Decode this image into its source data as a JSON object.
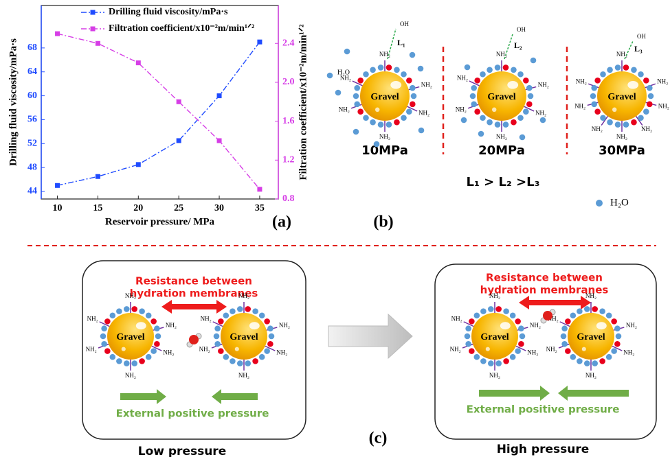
{
  "chart_data": {
    "type": "line",
    "panel_label": "(a)",
    "xlabel": "Reservoir pressure/ MPa",
    "ylabel": "Drilling fluid viscosity/mPa·s",
    "y2label": "Filtration coefficient/x10⁻²m/min¹ᐟ²",
    "x": [
      10,
      15,
      20,
      25,
      30,
      35
    ],
    "xlim": [
      8,
      37.3
    ],
    "xticks": [
      10,
      15,
      20,
      25,
      30,
      35
    ],
    "ylim": [
      42.74,
      75.1
    ],
    "yticks": [
      44,
      48,
      52,
      56,
      60,
      64,
      68
    ],
    "y2lim": [
      0.8,
      2.79
    ],
    "y2ticks": [
      0.8,
      1.2,
      1.6,
      {
        "value": 2,
        "label": "2.0"
      },
      2.4
    ],
    "series": [
      {
        "name": "Drilling fluid viscosity/mPa·s",
        "color": "#1f4bff",
        "values": [
          45,
          46.5,
          48.5,
          52.5,
          60,
          69
        ]
      },
      {
        "name": "Filtration coefficient/x10⁻²m/min¹ᐟ²",
        "color": "#d63ee6",
        "axis": "y2",
        "values": [
          2.5,
          2.4,
          2.2,
          1.8,
          1.4,
          0.9
        ]
      }
    ]
  },
  "panel_b": {
    "label": "(b)",
    "gravel": "Gravel",
    "nh2": "NH₂",
    "oh": "OH",
    "water": "H₂O",
    "bonds": [
      "L₁",
      "L₂",
      "L₃"
    ],
    "pressures": [
      "10MPa",
      "20MPa",
      "30MPa"
    ],
    "relation": "L₁ > L₂ >L₃",
    "legend": "H₂O"
  },
  "panel_c": {
    "label": "(c)",
    "gravel": "Gravel",
    "nh2": "NH₂",
    "resistance": [
      "Resistance between",
      "hydration membranes"
    ],
    "external": "External positive pressure",
    "states": [
      "Low pressure",
      "High pressure"
    ]
  }
}
